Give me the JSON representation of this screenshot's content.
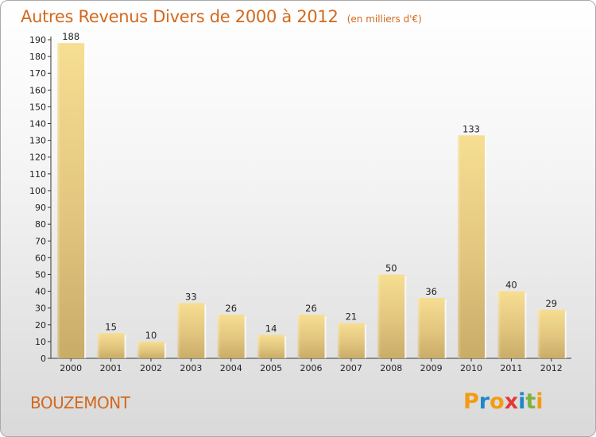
{
  "header": {
    "title": "Autres Revenus Divers de 2000 à 2012",
    "subtitle": "(en milliers d'€)"
  },
  "footer": {
    "commune": "BOUZEMONT",
    "logo_letters": [
      "P",
      "r",
      "o",
      "x",
      "i",
      "t",
      "i"
    ],
    "logo_colors": [
      "#f39c12",
      "#1e88c8",
      "#f39c12",
      "#e53935",
      "#1e88c8",
      "#7cb342",
      "#f39c12"
    ]
  },
  "chart_data": {
    "type": "bar",
    "title": "Autres Revenus Divers de 2000 à 2012",
    "subtitle": "(en milliers d'€)",
    "categories": [
      "2000",
      "2001",
      "2002",
      "2003",
      "2004",
      "2005",
      "2006",
      "2007",
      "2008",
      "2009",
      "2010",
      "2011",
      "2012"
    ],
    "values": [
      188,
      15,
      10,
      33,
      26,
      14,
      26,
      21,
      50,
      36,
      133,
      40,
      29
    ],
    "ylim": [
      0,
      190
    ],
    "yticks": [
      0,
      10,
      20,
      30,
      40,
      50,
      60,
      70,
      80,
      90,
      100,
      110,
      120,
      130,
      140,
      150,
      160,
      170,
      180,
      190
    ],
    "xlabel": "",
    "ylabel": "",
    "grid": false,
    "bar_color": "#e8c878"
  }
}
